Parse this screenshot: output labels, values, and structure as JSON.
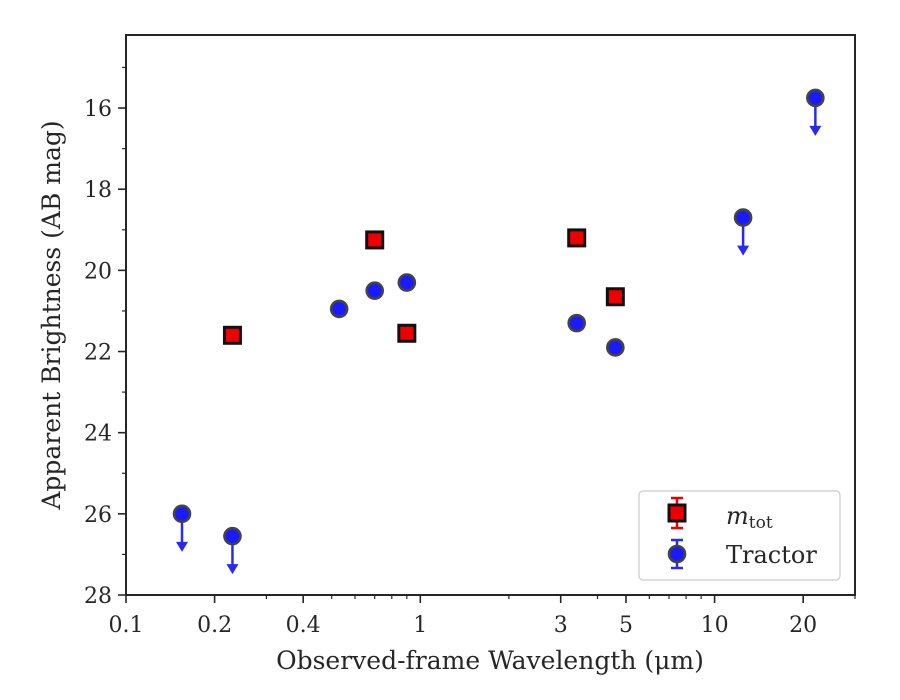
{
  "chart_data": {
    "type": "scatter",
    "xlabel": "Observed-frame Wavelength (μm)",
    "ylabel": "Apparent Brightness (AB mag)",
    "xscale": "log",
    "xlim": [
      0.1,
      30
    ],
    "ylim": [
      28,
      14.2
    ],
    "y_inverted": true,
    "x_ticks": [
      0.1,
      0.2,
      0.4,
      1,
      3,
      5,
      10,
      20
    ],
    "x_tick_labels": [
      "0.1",
      "0.2",
      "0.4",
      "1",
      "3",
      "5",
      "10",
      "20"
    ],
    "y_ticks": [
      16,
      18,
      20,
      22,
      24,
      26,
      28
    ],
    "y_tick_labels": [
      "16",
      "18",
      "20",
      "22",
      "24",
      "26",
      "28"
    ],
    "legend_position": "bottom-right",
    "series": [
      {
        "name": "m_tot",
        "label_main": "m",
        "label_sub": "tot",
        "marker": "square",
        "color": "#ee0000",
        "edge_color": "#111111",
        "x": [
          0.23,
          0.7,
          0.9,
          3.4,
          4.6
        ],
        "y": [
          21.6,
          19.25,
          21.55,
          19.2,
          20.65
        ],
        "upper_limit": [
          false,
          false,
          false,
          false,
          false
        ]
      },
      {
        "name": "Tractor",
        "marker": "circle",
        "color": "#1a1aff",
        "edge_color": "#444444",
        "x": [
          0.155,
          0.23,
          0.53,
          0.7,
          0.9,
          3.4,
          4.6,
          12.5,
          22
        ],
        "y": [
          26.0,
          26.55,
          20.95,
          20.5,
          20.3,
          21.3,
          21.9,
          18.7,
          15.75
        ],
        "upper_limit": [
          true,
          true,
          false,
          false,
          false,
          false,
          false,
          true,
          true
        ]
      }
    ]
  }
}
